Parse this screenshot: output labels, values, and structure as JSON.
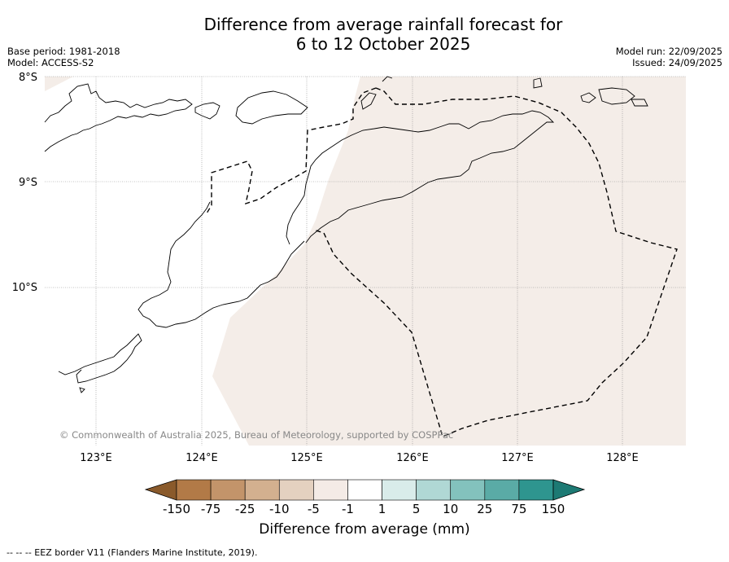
{
  "title_line1": "Difference from average rainfall forecast for",
  "title_line2": "6 to 12 October 2025",
  "base_period": "Base period: 1981-2018",
  "model": "Model: ACCESS-S2",
  "model_run": "Model run: 22/09/2025",
  "issued": "Issued: 24/09/2025",
  "copyright": "© Commonwealth of Australia 2025, Bureau of Meteorology, supported by COSPPac",
  "lat_labels": [
    "8°S",
    "9°S",
    "10°S"
  ],
  "lon_labels": [
    "123°E",
    "124°E",
    "125°E",
    "126°E",
    "127°E",
    "128°E"
  ],
  "colorbar": {
    "title": "Difference from average (mm)",
    "ticks": [
      "-150",
      "-75",
      "-25",
      "-10",
      "-5",
      "-1",
      "1",
      "5",
      "10",
      "25",
      "75",
      "150"
    ],
    "colors": [
      "#a66e38",
      "#b27a47",
      "#c3946a",
      "#d3b08f",
      "#e4d1c0",
      "#f4ebe6",
      "#ffffff",
      "#d9ecea",
      "#b0d8d5",
      "#83c2bd",
      "#5aaba6",
      "#2e958f",
      "#1d7a74"
    ]
  },
  "legend_note": "--  --  -- EEZ border V11 (Flanders Marine Institute, 2019)."
}
